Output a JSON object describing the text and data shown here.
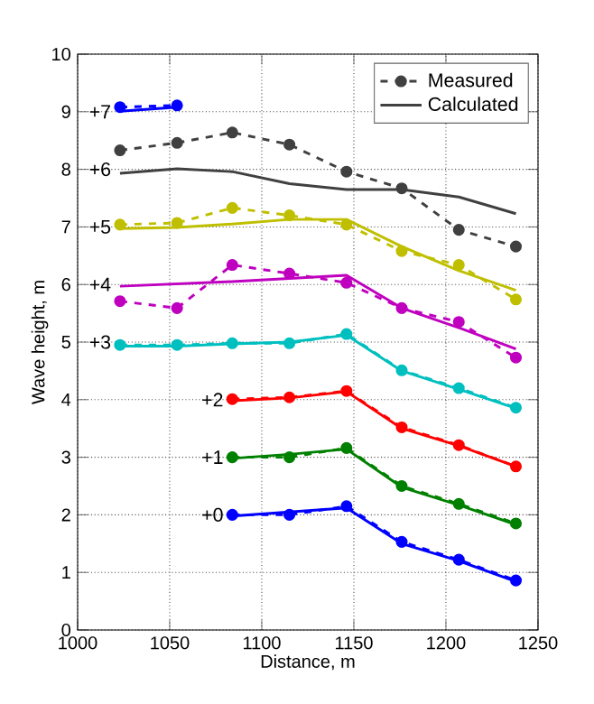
{
  "chart_data": {
    "type": "line",
    "xlabel": "Distance, m",
    "ylabel": "Wave height, m",
    "xlim": [
      1000,
      1250
    ],
    "ylim": [
      0,
      10
    ],
    "xticks": [
      1000,
      1050,
      1100,
      1150,
      1200,
      1250
    ],
    "yticks": [
      0,
      1,
      2,
      3,
      4,
      5,
      6,
      7,
      8,
      9,
      10
    ],
    "grid": true,
    "legend": "top right",
    "annotations": [
      "+0",
      "+1",
      "+2",
      "+3",
      "+4",
      "+5",
      "+6",
      "+7"
    ],
    "series": [
      {
        "color": "#0000ff",
        "line_style": "dashed",
        "marker": "circle",
        "x": [
          1084,
          1115,
          1146,
          1176,
          1207,
          1238
        ],
        "values": [
          2.0,
          2.0,
          2.15,
          1.53,
          1.22,
          0.86
        ]
      },
      {
        "color": "#0000ff",
        "line_style": "solid",
        "marker": "none",
        "x": [
          1084,
          1115,
          1146,
          1176,
          1207,
          1238
        ],
        "values": [
          1.98,
          2.05,
          2.12,
          1.5,
          1.2,
          0.84
        ]
      },
      {
        "color": "#008000",
        "line_style": "dashed",
        "marker": "circle",
        "x": [
          1084,
          1115,
          1146,
          1176,
          1207,
          1238
        ],
        "values": [
          3.0,
          3.0,
          3.16,
          2.5,
          2.19,
          1.85
        ]
      },
      {
        "color": "#008000",
        "line_style": "solid",
        "marker": "none",
        "x": [
          1084,
          1115,
          1146,
          1176,
          1207,
          1238
        ],
        "values": [
          2.98,
          3.05,
          3.14,
          2.48,
          2.17,
          1.83
        ]
      },
      {
        "color": "#ff0000",
        "line_style": "dashed",
        "marker": "circle",
        "x": [
          1084,
          1115,
          1146,
          1176,
          1207,
          1238
        ],
        "values": [
          4.01,
          4.04,
          4.15,
          3.52,
          3.21,
          2.84
        ]
      },
      {
        "color": "#ff0000",
        "line_style": "solid",
        "marker": "none",
        "x": [
          1084,
          1115,
          1146,
          1176,
          1207,
          1238
        ],
        "values": [
          3.98,
          4.03,
          4.14,
          3.5,
          3.2,
          2.84
        ]
      },
      {
        "color": "#00bfbf",
        "line_style": "dashed",
        "marker": "circle",
        "x": [
          1023,
          1054,
          1084,
          1115,
          1146,
          1176,
          1207,
          1238
        ],
        "values": [
          4.95,
          4.95,
          4.98,
          4.98,
          5.14,
          4.51,
          4.2,
          3.86
        ]
      },
      {
        "color": "#00bfbf",
        "line_style": "solid",
        "marker": "none",
        "x": [
          1023,
          1054,
          1084,
          1115,
          1146,
          1176,
          1207,
          1238
        ],
        "values": [
          4.93,
          4.93,
          4.97,
          5.0,
          5.12,
          4.5,
          4.18,
          3.85
        ]
      },
      {
        "color": "#bf00bf",
        "line_style": "dashed",
        "marker": "circle",
        "x": [
          1023,
          1054,
          1084,
          1115,
          1146,
          1176,
          1207,
          1238
        ],
        "values": [
          5.71,
          5.59,
          6.34,
          6.19,
          6.03,
          5.59,
          5.35,
          4.73
        ]
      },
      {
        "color": "#bf00bf",
        "line_style": "solid",
        "marker": "none",
        "x": [
          1023,
          1084,
          1146,
          1176,
          1207,
          1238
        ],
        "values": [
          5.97,
          6.05,
          6.16,
          5.59,
          5.25,
          4.88
        ]
      },
      {
        "color": "#bfbf00",
        "line_style": "dashed",
        "marker": "circle",
        "x": [
          1023,
          1054,
          1084,
          1115,
          1146,
          1176,
          1207,
          1238
        ],
        "values": [
          7.04,
          7.07,
          7.33,
          7.2,
          7.04,
          6.58,
          6.34,
          5.74
        ]
      },
      {
        "color": "#bfbf00",
        "line_style": "solid",
        "marker": "none",
        "x": [
          1023,
          1054,
          1084,
          1115,
          1146,
          1176,
          1207,
          1238
        ],
        "values": [
          6.97,
          6.99,
          7.05,
          7.13,
          7.13,
          6.66,
          6.24,
          5.9
        ]
      },
      {
        "name": "Measured",
        "color": "#404040",
        "line_style": "dashed",
        "marker": "circle",
        "x": [
          1023,
          1054,
          1084,
          1115,
          1146,
          1176,
          1207,
          1238
        ],
        "values": [
          8.33,
          8.46,
          8.64,
          8.43,
          7.96,
          7.67,
          6.95,
          6.66
        ]
      },
      {
        "name": "Calculated",
        "color": "#404040",
        "line_style": "solid",
        "marker": "none",
        "x": [
          1023,
          1054,
          1084,
          1115,
          1146,
          1176,
          1207,
          1238
        ],
        "values": [
          7.93,
          8.01,
          7.96,
          7.75,
          7.65,
          7.65,
          7.52,
          7.23
        ]
      },
      {
        "color": "#0000ff",
        "line_style": "dashed",
        "marker": "circle",
        "x": [
          1023,
          1054
        ],
        "values": [
          9.08,
          9.11
        ]
      },
      {
        "color": "#0000ff",
        "line_style": "solid",
        "marker": "none",
        "x": [
          1023,
          1054
        ],
        "values": [
          9.01,
          9.08
        ]
      }
    ]
  }
}
